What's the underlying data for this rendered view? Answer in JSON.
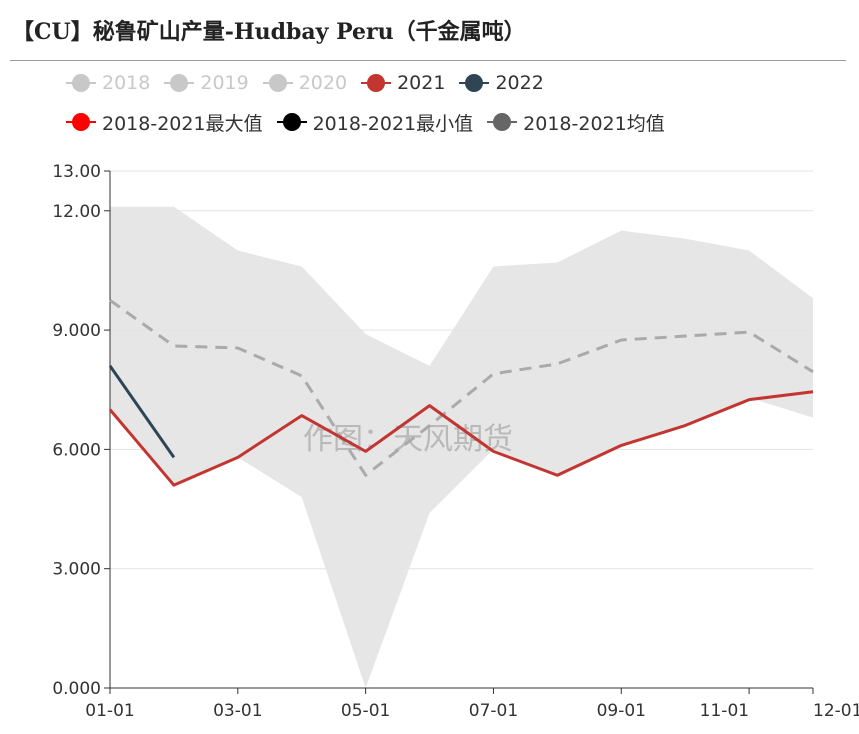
{
  "title": "【CU】秘鲁矿山产量-Hudbay Peru（千金属吨）",
  "watermark": "作图：天风期货",
  "legend": [
    {
      "label": "2018",
      "color": "#c8c8c8",
      "active": false
    },
    {
      "label": "2019",
      "color": "#c8c8c8",
      "active": false
    },
    {
      "label": "2020",
      "color": "#c8c8c8",
      "active": false
    },
    {
      "label": "2021",
      "color": "#c23531",
      "active": true
    },
    {
      "label": "2022",
      "color": "#2f4554",
      "active": true
    },
    {
      "label": "2018-2021最大值",
      "color": "#ff0000",
      "active": true
    },
    {
      "label": "2018-2021最小值",
      "color": "#000000",
      "active": true
    },
    {
      "label": "2018-2021均值",
      "color": "#666666",
      "active": true
    }
  ],
  "chart_data": {
    "type": "line",
    "x": [
      "01-01",
      "02-01",
      "03-01",
      "04-01",
      "05-01",
      "06-01",
      "07-01",
      "08-01",
      "09-01",
      "10-01",
      "11-01",
      "12-01"
    ],
    "x_tick_labels": [
      "01-01",
      "03-01",
      "05-01",
      "07-01",
      "09-01",
      "11-01",
      "12-01"
    ],
    "y_tick_labels": [
      "0.000",
      "3.000",
      "6.000",
      "9.000",
      "12.00",
      "13.00"
    ],
    "y_ticks": [
      0,
      3,
      6,
      9,
      12,
      13
    ],
    "ylim": [
      0,
      13
    ],
    "grid": true,
    "legend_position": "top",
    "band": {
      "max": [
        12.1,
        12.1,
        11.0,
        10.6,
        8.9,
        8.1,
        10.6,
        10.7,
        11.5,
        11.3,
        11.0,
        9.8
      ],
      "min": [
        7.0,
        5.1,
        5.8,
        4.8,
        0.0,
        4.4,
        6.0,
        5.3,
        6.1,
        6.6,
        7.3,
        6.8
      ],
      "color": "#e6e6e6"
    },
    "series": [
      {
        "name": "2021",
        "color": "#c23531",
        "style": "solid",
        "values": [
          7.0,
          5.1,
          5.8,
          6.85,
          5.95,
          7.1,
          5.95,
          5.35,
          6.1,
          6.6,
          7.25,
          7.45
        ]
      },
      {
        "name": "2022",
        "color": "#2f4554",
        "style": "solid",
        "values": [
          8.1,
          5.8,
          null,
          null,
          null,
          null,
          null,
          null,
          null,
          null,
          null,
          null
        ]
      },
      {
        "name": "2018-2021均值",
        "color": "#aaaaaa",
        "style": "dashed",
        "values": [
          9.75,
          8.6,
          8.55,
          7.85,
          5.35,
          6.6,
          7.9,
          8.15,
          8.75,
          8.85,
          8.95,
          7.95
        ]
      }
    ]
  }
}
